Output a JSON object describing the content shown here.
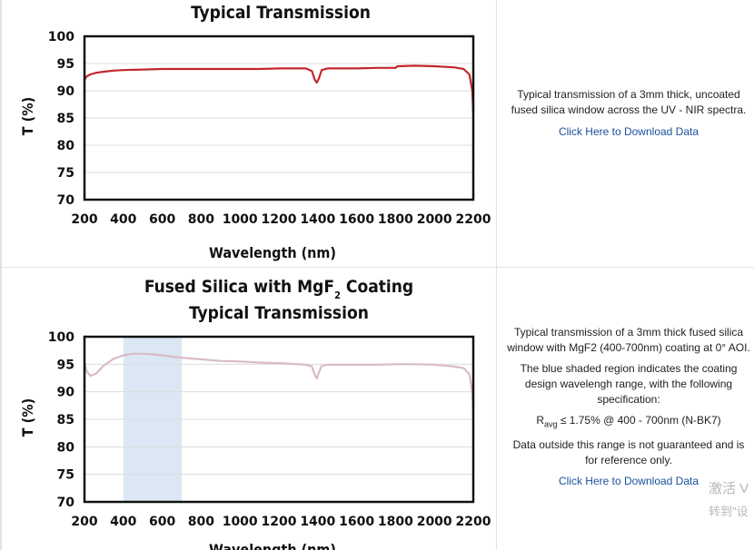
{
  "chart_data": [
    {
      "type": "line",
      "title": "Typical Transmission",
      "xlabel": "Wavelength (nm)",
      "ylabel": "T (%)",
      "xlim": [
        200,
        2200
      ],
      "ylim": [
        70,
        100
      ],
      "xticks": [
        "200",
        "400",
        "600",
        "800",
        "1000",
        "1200",
        "1400",
        "1600",
        "1800",
        "2000",
        "2200"
      ],
      "yticks": [
        "100",
        "95",
        "90",
        "85",
        "80",
        "75",
        "70"
      ],
      "grid": true,
      "line_color": "#c2272d",
      "series": [
        {
          "x": [
            200,
            210,
            230,
            260,
            300,
            350,
            400,
            500,
            600,
            700,
            800,
            900,
            1000,
            1100,
            1200,
            1300,
            1340,
            1370,
            1385,
            1395,
            1405,
            1420,
            1450,
            1500,
            1600,
            1700,
            1800,
            1810,
            1900,
            2000,
            2100,
            2150,
            2180,
            2195,
            2200
          ],
          "y": [
            92.0,
            92.6,
            93.0,
            93.3,
            93.5,
            93.7,
            93.8,
            93.9,
            94.0,
            94.0,
            94.0,
            94.0,
            94.0,
            94.0,
            94.1,
            94.1,
            94.1,
            93.6,
            92.0,
            91.5,
            92.2,
            93.8,
            94.1,
            94.1,
            94.1,
            94.2,
            94.2,
            94.5,
            94.6,
            94.5,
            94.3,
            94.0,
            93.0,
            90.0,
            86.0
          ]
        }
      ]
    },
    {
      "type": "line",
      "title_main": "Fused Silica with MgF",
      "title_sub": "2",
      "title_rest": " Coating",
      "title_line2": "Typical Transmission",
      "xlabel": "Wavelength (nm)",
      "ylabel": "T (%)",
      "xlim": [
        200,
        2200
      ],
      "ylim": [
        70,
        100
      ],
      "xticks": [
        "200",
        "400",
        "600",
        "800",
        "1000",
        "1200",
        "1400",
        "1600",
        "1800",
        "2000",
        "2200"
      ],
      "yticks": [
        "100",
        "95",
        "90",
        "85",
        "80",
        "75",
        "70"
      ],
      "grid": true,
      "line_color": "#d8bcc6",
      "shade_color": "#dbe7f4",
      "shaded_range": [
        400,
        700
      ],
      "series": [
        {
          "x": [
            200,
            210,
            230,
            260,
            300,
            350,
            400,
            450,
            500,
            550,
            600,
            700,
            800,
            900,
            1000,
            1100,
            1200,
            1300,
            1340,
            1370,
            1385,
            1395,
            1405,
            1420,
            1450,
            1500,
            1600,
            1700,
            1800,
            1900,
            2000,
            2100,
            2150,
            2180,
            2195,
            2200
          ],
          "y": [
            95.3,
            93.8,
            92.9,
            93.3,
            94.8,
            96.0,
            96.6,
            96.9,
            96.9,
            96.8,
            96.6,
            96.2,
            95.9,
            95.6,
            95.5,
            95.3,
            95.2,
            95.0,
            94.9,
            94.6,
            93.0,
            92.4,
            93.5,
            94.7,
            94.9,
            94.9,
            94.9,
            94.9,
            95.0,
            95.0,
            94.9,
            94.6,
            94.3,
            93.2,
            90.0,
            86.0
          ]
        }
      ]
    }
  ],
  "panels": {
    "p1": {
      "description": "Typical transmission of a 3mm thick, uncoated fused silica window across the UV - NIR spectra.",
      "link": "Click Here to Download Data"
    },
    "p2": {
      "description1": "Typical transmission of a 3mm thick fused silica window with MgF2 (400-700nm) coating at 0° AOI.",
      "description2": "The blue shaded region indicates the coating design wavelengh range, with the following specification:",
      "spec_r": "R",
      "spec_sub": "avg",
      "spec_rest": " ≤ 1.75% @ 400 - 700nm (N-BK7)",
      "description3": "Data outside this range is not guaranteed and is for reference only.",
      "link": "Click Here to Download Data"
    }
  },
  "watermark": {
    "line1": "激活 V",
    "line2": "转到\"设"
  }
}
